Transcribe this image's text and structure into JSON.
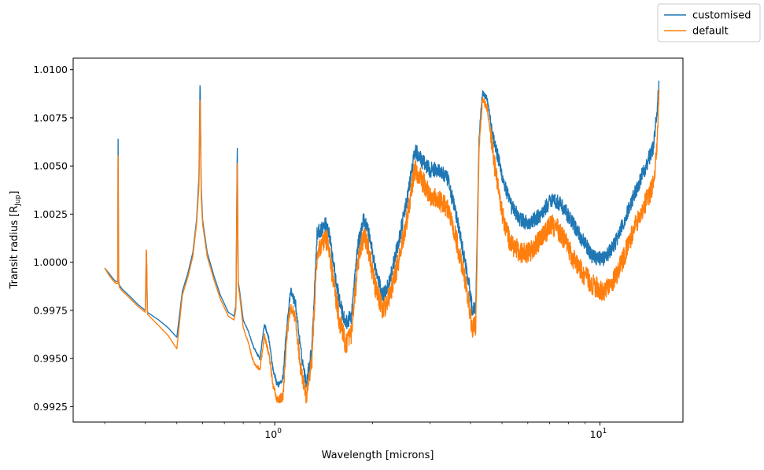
{
  "chart_data": {
    "type": "line",
    "xlabel": "Wavelength [microns]",
    "ylabel_main": "Transit radius [R",
    "ylabel_sub": "Jup",
    "ylabel_end": "]",
    "x_scale": "log",
    "xlim": [
      0.24,
      18
    ],
    "ylim": [
      0.9917,
      1.0106
    ],
    "x_ticks": [
      {
        "value": 1,
        "base": "10",
        "exp": "0"
      },
      {
        "value": 10,
        "base": "10",
        "exp": "1"
      }
    ],
    "y_ticks": [
      {
        "value": 0.9925,
        "label": "0.9925"
      },
      {
        "value": 0.995,
        "label": "0.9950"
      },
      {
        "value": 0.9975,
        "label": "0.9975"
      },
      {
        "value": 1.0,
        "label": "1.0000"
      },
      {
        "value": 1.0025,
        "label": "1.0025"
      },
      {
        "value": 1.005,
        "label": "1.0050"
      },
      {
        "value": 1.0075,
        "label": "1.0075"
      },
      {
        "value": 1.01,
        "label": "1.0100"
      }
    ],
    "grid": false,
    "legend_position": "top-right",
    "series": [
      {
        "name": "customised",
        "color": "#1f77b4",
        "noise": 0.0005,
        "points": [
          [
            0.3,
            0.9997
          ],
          [
            0.31,
            0.9994
          ],
          [
            0.32,
            0.9991
          ],
          [
            0.325,
            0.999
          ],
          [
            0.329,
            0.999
          ],
          [
            0.33,
            1.0069
          ],
          [
            0.331,
            0.999
          ],
          [
            0.333,
            0.9988
          ],
          [
            0.34,
            0.9986
          ],
          [
            0.36,
            0.9982
          ],
          [
            0.38,
            0.9978
          ],
          [
            0.4,
            0.9975
          ],
          [
            0.403,
            1.0008
          ],
          [
            0.406,
            0.9974
          ],
          [
            0.44,
            0.997
          ],
          [
            0.47,
            0.9966
          ],
          [
            0.5,
            0.9961
          ],
          [
            0.52,
            0.9985
          ],
          [
            0.54,
            0.9994
          ],
          [
            0.56,
            1.0005
          ],
          [
            0.575,
            1.0022
          ],
          [
            0.585,
            1.0045
          ],
          [
            0.5895,
            1.0096
          ],
          [
            0.594,
            1.004
          ],
          [
            0.6,
            1.0022
          ],
          [
            0.62,
            1.0005
          ],
          [
            0.65,
            0.9993
          ],
          [
            0.68,
            0.9983
          ],
          [
            0.72,
            0.9974
          ],
          [
            0.75,
            0.9972
          ],
          [
            0.76,
            0.9978
          ],
          [
            0.767,
            1.0063
          ],
          [
            0.772,
            0.999
          ],
          [
            0.78,
            0.9985
          ],
          [
            0.8,
            0.997
          ],
          [
            0.83,
            0.9964
          ],
          [
            0.86,
            0.9956
          ],
          [
            0.9,
            0.995
          ],
          [
            0.93,
            0.9968
          ],
          [
            0.96,
            0.996
          ],
          [
            0.99,
            0.9943
          ],
          [
            1.02,
            0.9936
          ],
          [
            1.06,
            0.994
          ],
          [
            1.09,
            0.9968
          ],
          [
            1.12,
            0.9985
          ],
          [
            1.16,
            0.9978
          ],
          [
            1.2,
            0.9955
          ],
          [
            1.25,
            0.9937
          ],
          [
            1.3,
            0.9955
          ],
          [
            1.35,
            1.0015
          ],
          [
            1.4,
            1.0018
          ],
          [
            1.45,
            1.002
          ],
          [
            1.5,
            1.0005
          ],
          [
            1.58,
            0.998
          ],
          [
            1.65,
            0.9968
          ],
          [
            1.72,
            0.9972
          ],
          [
            1.8,
            1.0008
          ],
          [
            1.88,
            1.0023
          ],
          [
            1.95,
            1.0015
          ],
          [
            2.05,
            0.9995
          ],
          [
            2.15,
            0.9982
          ],
          [
            2.25,
            0.999
          ],
          [
            2.4,
            1.001
          ],
          [
            2.55,
            1.0032
          ],
          [
            2.7,
            1.0058
          ],
          [
            2.85,
            1.0052
          ],
          [
            3.0,
            1.0048
          ],
          [
            3.2,
            1.0048
          ],
          [
            3.4,
            1.0043
          ],
          [
            3.6,
            1.0026
          ],
          [
            3.8,
            1.0005
          ],
          [
            3.95,
            0.999
          ],
          [
            4.05,
            0.9975
          ],
          [
            4.15,
            0.9977
          ],
          [
            4.25,
            1.0065
          ],
          [
            4.35,
            1.0088
          ],
          [
            4.5,
            1.0085
          ],
          [
            4.7,
            1.0065
          ],
          [
            5.0,
            1.0045
          ],
          [
            5.3,
            1.003
          ],
          [
            5.7,
            1.0022
          ],
          [
            6.1,
            1.002
          ],
          [
            6.6,
            1.0025
          ],
          [
            7.1,
            1.0033
          ],
          [
            7.6,
            1.003
          ],
          [
            8.2,
            1.0021
          ],
          [
            8.8,
            1.0012
          ],
          [
            9.5,
            1.0003
          ],
          [
            10.3,
            1.0002
          ],
          [
            11.0,
            1.0008
          ],
          [
            11.8,
            1.002
          ],
          [
            12.6,
            1.0033
          ],
          [
            13.3,
            1.0043
          ],
          [
            14.0,
            1.0052
          ],
          [
            14.6,
            1.006
          ],
          [
            15.0,
            1.008
          ],
          [
            15.2,
            1.0092
          ]
        ]
      },
      {
        "name": "default",
        "color": "#ff7f0e",
        "noise": 0.0007,
        "points": [
          [
            0.3,
            0.9997
          ],
          [
            0.31,
            0.9993
          ],
          [
            0.32,
            0.999
          ],
          [
            0.325,
            0.9989
          ],
          [
            0.329,
            0.9989
          ],
          [
            0.33,
            1.006
          ],
          [
            0.331,
            0.9989
          ],
          [
            0.333,
            0.9987
          ],
          [
            0.34,
            0.9985
          ],
          [
            0.36,
            0.9981
          ],
          [
            0.38,
            0.9977
          ],
          [
            0.4,
            0.9974
          ],
          [
            0.403,
            1.001
          ],
          [
            0.406,
            0.9973
          ],
          [
            0.44,
            0.9967
          ],
          [
            0.47,
            0.9962
          ],
          [
            0.5,
            0.9955
          ],
          [
            0.52,
            0.9983
          ],
          [
            0.54,
            0.9992
          ],
          [
            0.56,
            1.0003
          ],
          [
            0.575,
            1.002
          ],
          [
            0.585,
            1.004
          ],
          [
            0.5895,
            1.0088
          ],
          [
            0.594,
            1.0035
          ],
          [
            0.6,
            1.002
          ],
          [
            0.62,
            1.0003
          ],
          [
            0.65,
            0.9991
          ],
          [
            0.68,
            0.9981
          ],
          [
            0.72,
            0.9972
          ],
          [
            0.75,
            0.997
          ],
          [
            0.76,
            0.9976
          ],
          [
            0.767,
            1.0055
          ],
          [
            0.772,
            0.9988
          ],
          [
            0.78,
            0.9983
          ],
          [
            0.8,
            0.9966
          ],
          [
            0.83,
            0.9958
          ],
          [
            0.86,
            0.9948
          ],
          [
            0.9,
            0.9944
          ],
          [
            0.93,
            0.9962
          ],
          [
            0.96,
            0.9952
          ],
          [
            0.99,
            0.9935
          ],
          [
            1.02,
            0.9928
          ],
          [
            1.06,
            0.993
          ],
          [
            1.09,
            0.9962
          ],
          [
            1.12,
            0.9978
          ],
          [
            1.16,
            0.997
          ],
          [
            1.2,
            0.9945
          ],
          [
            1.25,
            0.993
          ],
          [
            1.3,
            0.9948
          ],
          [
            1.35,
            1.0005
          ],
          [
            1.4,
            1.001
          ],
          [
            1.45,
            1.0012
          ],
          [
            1.5,
            0.9995
          ],
          [
            1.58,
            0.997
          ],
          [
            1.65,
            0.9958
          ],
          [
            1.72,
            0.9962
          ],
          [
            1.8,
            0.9998
          ],
          [
            1.88,
            1.0015
          ],
          [
            1.95,
            1.0005
          ],
          [
            2.05,
            0.9985
          ],
          [
            2.15,
            0.9975
          ],
          [
            2.25,
            0.9982
          ],
          [
            2.4,
            1.0
          ],
          [
            2.55,
            1.0022
          ],
          [
            2.7,
            1.0048
          ],
          [
            2.85,
            1.0042
          ],
          [
            3.0,
            1.0035
          ],
          [
            3.2,
            1.0032
          ],
          [
            3.4,
            1.0028
          ],
          [
            3.6,
            1.0013
          ],
          [
            3.8,
            0.9995
          ],
          [
            3.95,
            0.998
          ],
          [
            4.05,
            0.9965
          ],
          [
            4.15,
            0.9968
          ],
          [
            4.25,
            1.0058
          ],
          [
            4.35,
            1.0085
          ],
          [
            4.5,
            1.008
          ],
          [
            4.7,
            1.0055
          ],
          [
            5.0,
            1.0025
          ],
          [
            5.3,
            1.001
          ],
          [
            5.7,
            1.0005
          ],
          [
            6.1,
            1.0005
          ],
          [
            6.6,
            1.0012
          ],
          [
            7.1,
            1.002
          ],
          [
            7.6,
            1.0015
          ],
          [
            8.2,
            1.0003
          ],
          [
            8.8,
            0.9995
          ],
          [
            9.5,
            0.9988
          ],
          [
            10.3,
            0.9985
          ],
          [
            11.0,
            0.999
          ],
          [
            11.8,
            1.0002
          ],
          [
            12.6,
            1.0015
          ],
          [
            13.3,
            1.0025
          ],
          [
            14.0,
            1.0033
          ],
          [
            14.6,
            1.004
          ],
          [
            15.0,
            1.006
          ],
          [
            15.2,
            1.009
          ]
        ]
      }
    ]
  }
}
